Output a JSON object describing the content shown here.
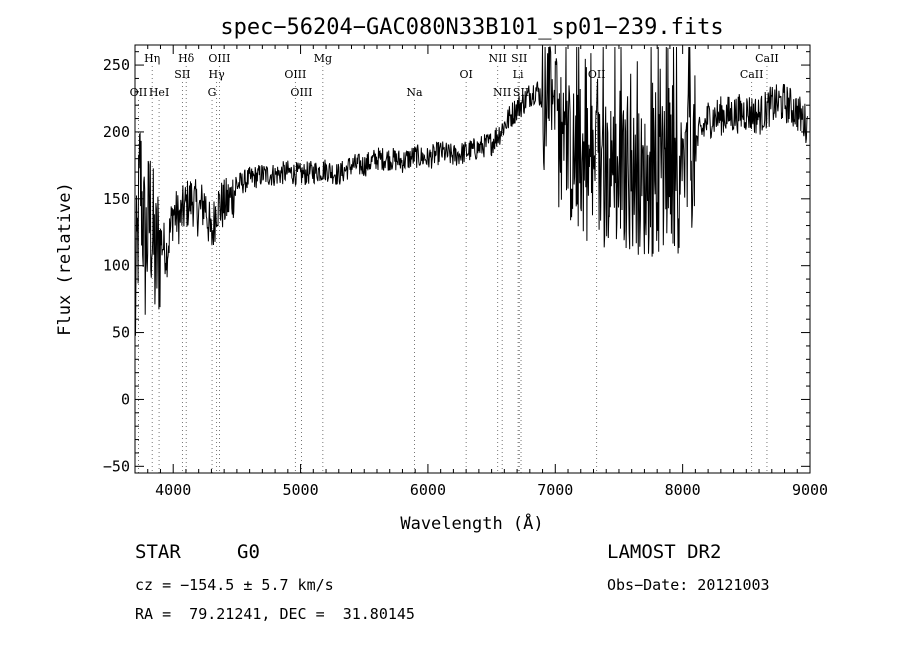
{
  "chart_data": {
    "type": "line",
    "title": "spec−56204−GAC080N33B101_sp01−239.fits",
    "xlabel": "Wavelength (Å)",
    "ylabel": "Flux (relative)",
    "xlim": [
      3700,
      9000
    ],
    "ylim": [
      -55,
      265
    ],
    "xticks": [
      4000,
      5000,
      6000,
      7000,
      8000,
      9000
    ],
    "yticks": [
      -50,
      0,
      50,
      100,
      150,
      200,
      250
    ],
    "xtick_labels": [
      "4000",
      "5000",
      "6000",
      "7000",
      "8000",
      "9000"
    ],
    "ytick_labels": [
      "−50",
      "0",
      "50",
      "100",
      "150",
      "200",
      "250"
    ],
    "series": [
      {
        "x": [
          3700,
          3740,
          3780,
          3820,
          3860,
          3900,
          3950,
          4000,
          4050,
          4100,
          4150,
          4200,
          4250,
          4300,
          4340,
          4400,
          4450,
          4500,
          4600,
          4700,
          4800,
          4900,
          5000,
          5100,
          5200,
          5300,
          5400,
          5500,
          5600,
          5700,
          5800,
          5900,
          6000,
          6100,
          6200,
          6300,
          6400,
          6500,
          6550,
          6600,
          6650,
          6700,
          6750,
          6800,
          6850,
          6900,
          6950,
          7000,
          7050,
          7100,
          7150,
          7200,
          7300,
          7400,
          7500,
          7600,
          7700,
          7800,
          7900,
          8000,
          8050,
          8100,
          8150,
          8200,
          8300,
          8400,
          8500,
          8600,
          8700,
          8800,
          8900,
          8980
        ],
        "y": [
          60,
          170,
          110,
          140,
          100,
          120,
          110,
          140,
          135,
          145,
          150,
          140,
          148,
          120,
          145,
          145,
          150,
          160,
          165,
          168,
          168,
          170,
          168,
          170,
          172,
          168,
          175,
          175,
          180,
          180,
          178,
          182,
          180,
          185,
          182,
          185,
          188,
          192,
          198,
          205,
          212,
          218,
          222,
          228,
          232,
          225,
          220,
          205,
          190,
          185,
          180,
          175,
          170,
          168,
          165,
          165,
          160,
          160,
          162,
          165,
          175,
          190,
          200,
          210,
          212,
          213,
          215,
          212,
          220,
          222,
          215,
          205
        ]
      }
    ],
    "lines": [
      {
        "label": "OII",
        "x": 3727,
        "row": 3
      },
      {
        "label": "Hη",
        "x": 3835,
        "row": 1
      },
      {
        "label": "HeI",
        "x": 3889,
        "row": 3
      },
      {
        "label": "Hδ",
        "x": 4102,
        "row": 1
      },
      {
        "label": "SII",
        "x": 4072,
        "row": 2
      },
      {
        "label": "OIII",
        "x": 4363,
        "row": 1
      },
      {
        "label": "Hγ",
        "x": 4341,
        "row": 2
      },
      {
        "label": "G",
        "x": 4305,
        "row": 3
      },
      {
        "label": "OIII",
        "x": 4959,
        "row": 2
      },
      {
        "label": "OIII",
        "x": 5007,
        "row": 3
      },
      {
        "label": "Mg",
        "x": 5175,
        "row": 1
      },
      {
        "label": "Na",
        "x": 5894,
        "row": 3
      },
      {
        "label": "OI",
        "x": 6300,
        "row": 2
      },
      {
        "label": "NII",
        "x": 6548,
        "row": 1
      },
      {
        "label": "NII",
        "x": 6583,
        "row": 3
      },
      {
        "label": "SII",
        "x": 6717,
        "row": 1
      },
      {
        "label": "Li",
        "x": 6708,
        "row": 2
      },
      {
        "label": "SII",
        "x": 6731,
        "row": 3
      },
      {
        "label": "OII",
        "x": 7325,
        "row": 2
      },
      {
        "label": "CaII",
        "x": 8662,
        "row": 1
      },
      {
        "label": "CaII",
        "x": 8542,
        "row": 2
      }
    ],
    "grid": false,
    "legend": "none"
  },
  "info": {
    "object_type": "STAR",
    "subclass": "G0",
    "survey": "LAMOST DR2",
    "redshift": "cz = −154.5 ± 5.7 km/s",
    "obs_date": "Obs−Date: 20121003",
    "coords": "RA =  79.21241, DEC =  31.80145"
  }
}
